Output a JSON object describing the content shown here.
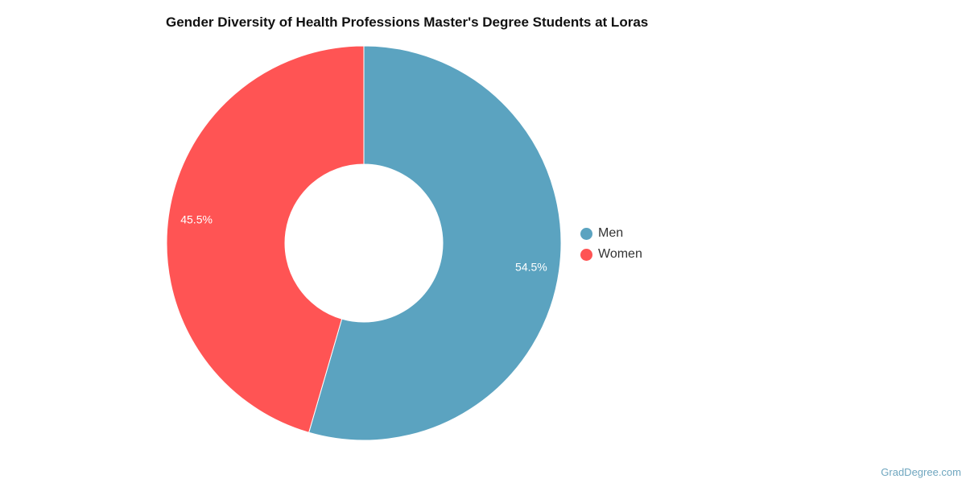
{
  "chart_data": {
    "type": "pie",
    "donut": true,
    "title": "Gender Diversity of Health Professions Master's Degree Students at Loras",
    "slices": [
      {
        "label": "Men",
        "value": 54.5,
        "display": "54.5%",
        "color": "#5ba3c0"
      },
      {
        "label": "Women",
        "value": 45.5,
        "display": "45.5%",
        "color": "#ff5454"
      }
    ],
    "legend_placement": "right"
  },
  "watermark": "GradDegree.com"
}
